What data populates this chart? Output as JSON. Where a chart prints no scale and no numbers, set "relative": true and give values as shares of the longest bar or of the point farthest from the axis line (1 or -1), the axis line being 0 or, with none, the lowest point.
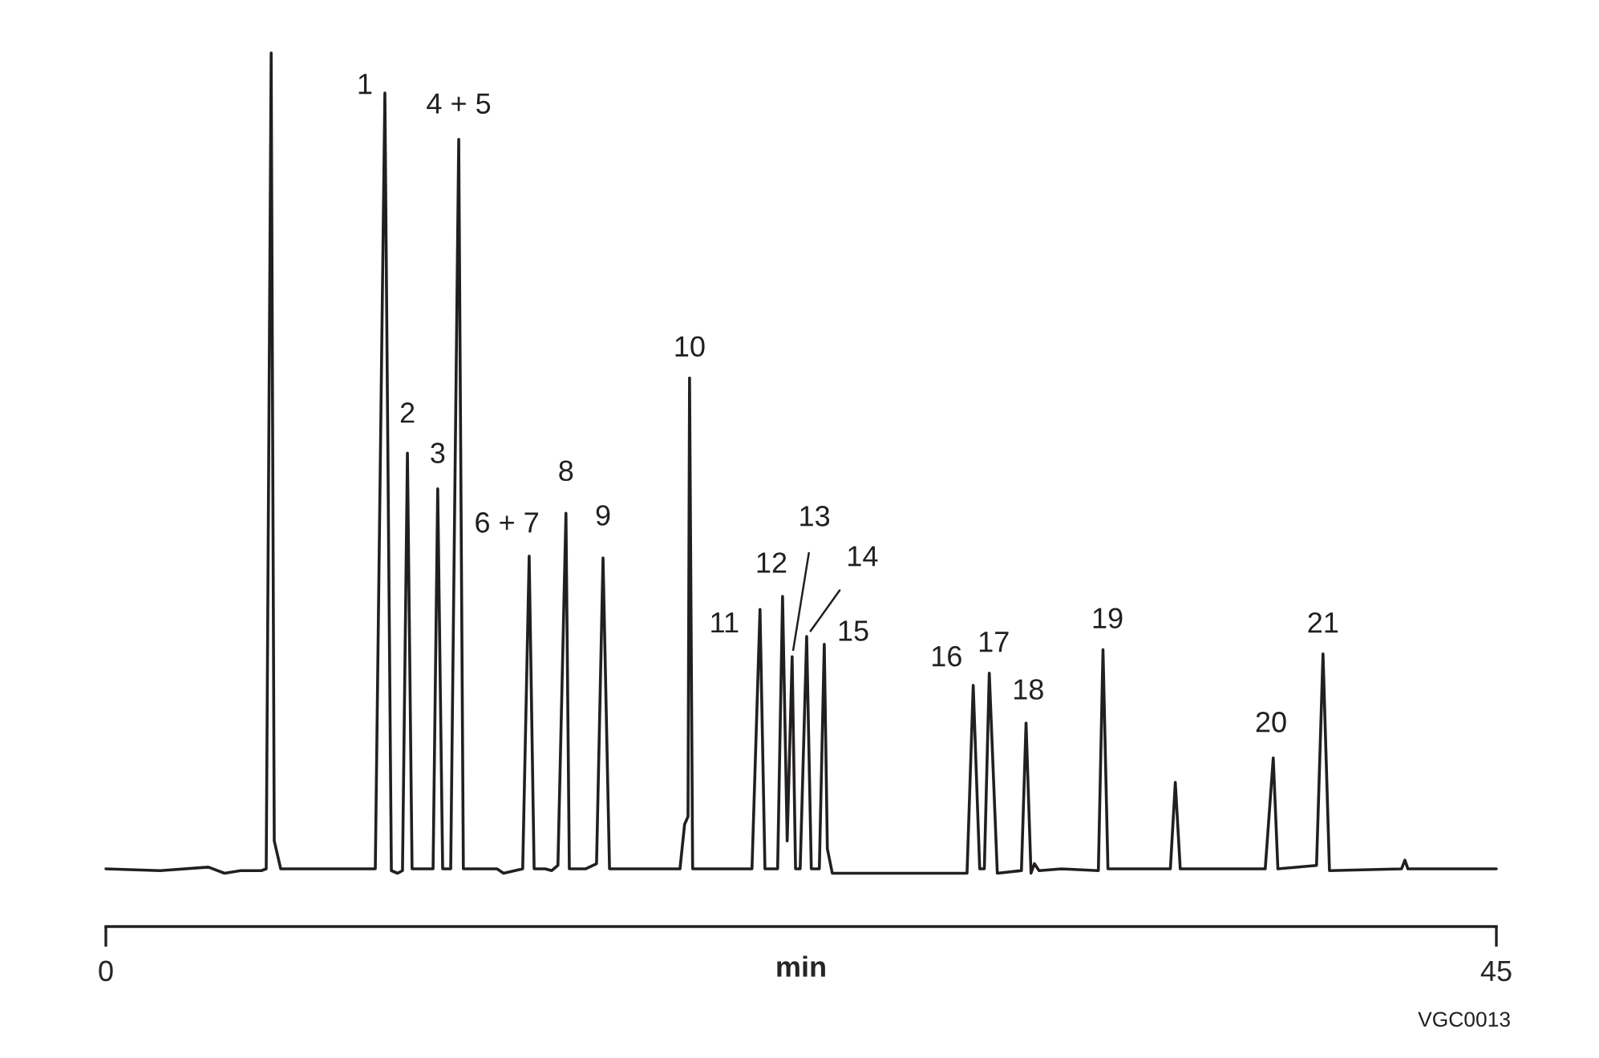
{
  "chart_data": {
    "type": "line",
    "relative": true,
    "xlabel": "min",
    "xlim": [
      0,
      45
    ],
    "xticks": [
      0,
      45
    ],
    "tick_labels": "x",
    "color": "#231f20",
    "x": [
      0,
      1.76,
      3.32,
      3.84,
      4.36,
      5.03,
      5.19,
      5.35,
      5.45,
      5.66,
      8.72,
      9.03,
      9.24,
      9.44,
      9.6,
      9.76,
      9.91,
      10.59,
      10.74,
      10.9,
      11.16,
      11.42,
      11.57,
      12.66,
      12.87,
      13.49,
      13.7,
      13.86,
      14.22,
      14.43,
      14.63,
      14.89,
      15.0,
      15.52,
      15.88,
      16.09,
      16.3,
      18.58,
      18.73,
      18.84,
      18.89,
      18.99,
      20.91,
      21.17,
      21.33,
      21.74,
      21.9,
      22.05,
      22.21,
      22.32,
      22.47,
      22.68,
      22.83,
      23.09,
      23.25,
      23.35,
      23.51,
      27.87,
      28.07,
      28.28,
      28.43,
      28.59,
      28.85,
      29.63,
      29.78,
      29.94,
      30.05,
      30.2,
      30.93,
      32.12,
      32.27,
      32.43,
      34.45,
      34.61,
      34.77,
      37.52,
      37.78,
      37.93,
      39.18,
      39.39,
      39.6,
      41.93,
      42.04,
      42.14,
      45.0
    ],
    "values": [
      0.066,
      0.064,
      0.068,
      0.061,
      0.064,
      0.064,
      0.066,
      1.0,
      0.098,
      0.066,
      0.066,
      0.954,
      0.064,
      0.061,
      0.064,
      0.542,
      0.066,
      0.066,
      0.501,
      0.066,
      0.066,
      0.901,
      0.066,
      0.066,
      0.061,
      0.066,
      0.424,
      0.066,
      0.066,
      0.064,
      0.07,
      0.473,
      0.066,
      0.066,
      0.072,
      0.422,
      0.066,
      0.066,
      0.117,
      0.126,
      0.628,
      0.066,
      0.066,
      0.363,
      0.066,
      0.066,
      0.378,
      0.098,
      0.309,
      0.066,
      0.066,
      0.332,
      0.066,
      0.066,
      0.323,
      0.089,
      0.061,
      0.061,
      0.276,
      0.066,
      0.066,
      0.29,
      0.061,
      0.064,
      0.233,
      0.061,
      0.072,
      0.064,
      0.066,
      0.064,
      0.317,
      0.066,
      0.066,
      0.165,
      0.066,
      0.066,
      0.193,
      0.066,
      0.07,
      0.312,
      0.064,
      0.066,
      0.076,
      0.066,
      0.066
    ],
    "annotations": [
      {
        "text": "1",
        "x": 9.03,
        "y": 0.954
      },
      {
        "text": "2",
        "x": 9.76,
        "y": 0.542
      },
      {
        "text": "3",
        "x": 10.74,
        "y": 0.501
      },
      {
        "text": "4 + 5",
        "x": 11.42,
        "y": 0.901
      },
      {
        "text": "6 + 7",
        "x": 13.7,
        "y": 0.424
      },
      {
        "text": "8",
        "x": 14.89,
        "y": 0.473
      },
      {
        "text": "9",
        "x": 16.09,
        "y": 0.422
      },
      {
        "text": "10",
        "x": 18.89,
        "y": 0.628
      },
      {
        "text": "11",
        "x": 21.17,
        "y": 0.363
      },
      {
        "text": "12",
        "x": 21.9,
        "y": 0.378
      },
      {
        "text": "13",
        "x": 22.21,
        "y": 0.309
      },
      {
        "text": "14",
        "x": 22.68,
        "y": 0.332
      },
      {
        "text": "15",
        "x": 23.25,
        "y": 0.323
      },
      {
        "text": "16",
        "x": 28.07,
        "y": 0.276
      },
      {
        "text": "17",
        "x": 28.59,
        "y": 0.29
      },
      {
        "text": "18",
        "x": 29.78,
        "y": 0.233
      },
      {
        "text": "19",
        "x": 32.27,
        "y": 0.317
      },
      {
        "text": "20",
        "x": 37.78,
        "y": 0.193
      },
      {
        "text": "21",
        "x": 39.39,
        "y": 0.312
      },
      "VGC0013"
    ]
  }
}
